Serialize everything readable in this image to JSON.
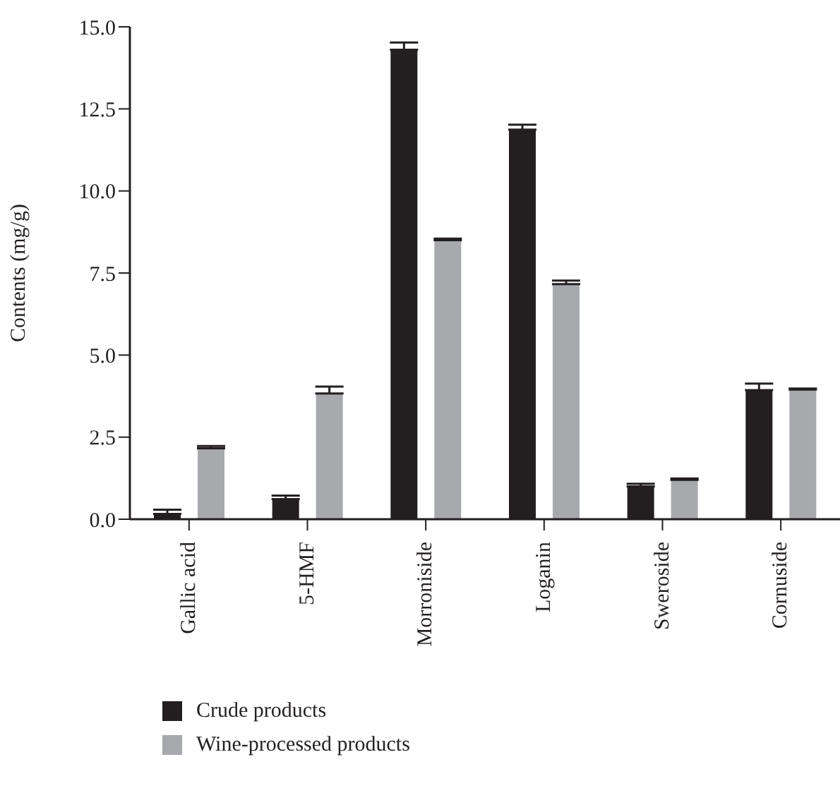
{
  "chart_data": {
    "type": "bar",
    "ylabel": "Contents (mg/g)",
    "categories": [
      "Gallic acid",
      "5-HMF",
      "Morroniside",
      "Loganin",
      "Sweroside",
      "Cornuside"
    ],
    "series": [
      {
        "name": "Crude products",
        "color": "#231f20",
        "values": [
          0.16,
          0.61,
          14.3,
          11.87,
          1.0,
          3.93
        ],
        "errors": [
          0.13,
          0.11,
          0.22,
          0.15,
          0.08,
          0.2
        ]
      },
      {
        "name": "Wine-processed products",
        "color": "#a7a9ac",
        "values": [
          2.16,
          3.83,
          8.5,
          7.16,
          1.2,
          3.95
        ],
        "errors": [
          0.07,
          0.21,
          0.05,
          0.11,
          0.04,
          0.03
        ]
      }
    ],
    "ylim": [
      0,
      15
    ],
    "yticks": [
      {
        "value": 0,
        "label": "0.0"
      },
      {
        "value": 2.5,
        "label": "2.5"
      },
      {
        "value": 5,
        "label": "5.0"
      },
      {
        "value": 7.5,
        "label": "7.5"
      },
      {
        "value": 10,
        "label": "10.0"
      },
      {
        "value": 12.5,
        "label": "12.5"
      },
      {
        "value": 15,
        "label": "15.0"
      }
    ],
    "grid": false,
    "legend": "bottom left"
  }
}
